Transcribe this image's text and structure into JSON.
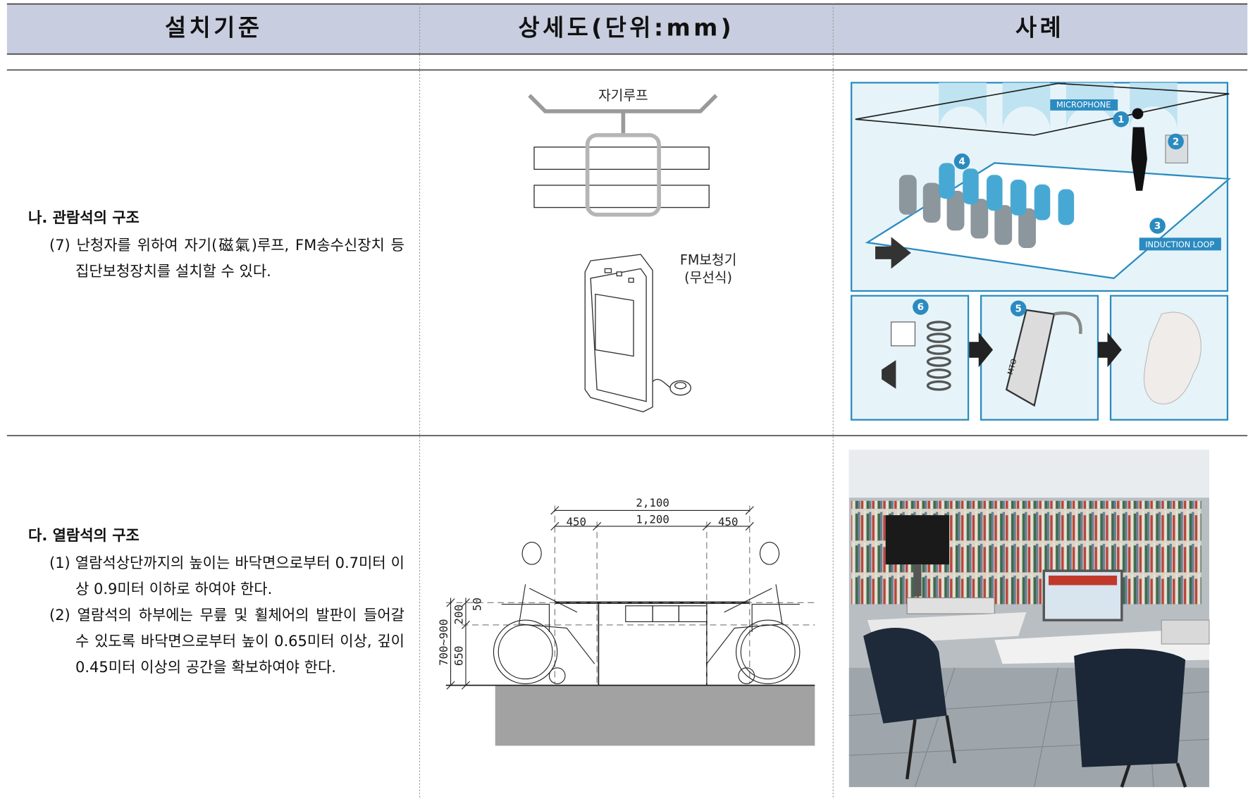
{
  "header": {
    "columns": [
      "설치기준",
      "상세도(단위:mm)",
      "사례"
    ]
  },
  "rows": [
    {
      "heading": "나. 관람석의 구조",
      "items": [
        "(7) 난청자를 위하여 자기(磁氣)루프, FM송수신장치 등 집단보청장치를 설치할 수 있다."
      ],
      "diagram": {
        "labels": [
          "자기루프",
          "FM보청기",
          "(무선식)"
        ]
      },
      "example": {
        "labels": [
          "MICROPHONE",
          "INDUCTION LOOP",
          "MTO"
        ],
        "markers": [
          "1",
          "2",
          "3",
          "4",
          "5",
          "6"
        ]
      }
    },
    {
      "heading": "다. 열람석의 구조",
      "items": [
        "(1) 열람석상단까지의 높이는 바닥면으로부터 0.7미터 이상 0.9미터 이하로 하여야 한다.",
        "(2) 열람석의 하부에는 무릎 및 휠체어의 발판이 들어갈 수 있도록 바닥면으로부터 높이 0.65미터 이상, 깊이 0.45미터 이상의 공간을 확보하여야 한다."
      ],
      "diagram": {
        "dimensions": [
          "2,100",
          "450",
          "1,200",
          "450",
          "700~900",
          "650",
          "200",
          "50"
        ]
      }
    }
  ]
}
